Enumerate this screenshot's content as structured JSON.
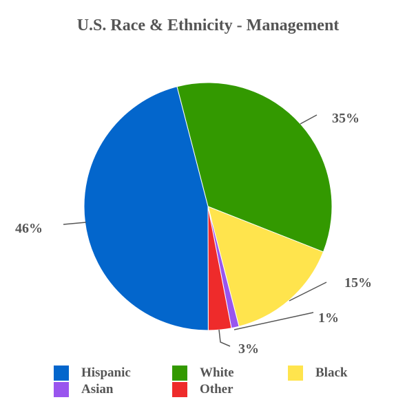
{
  "chart_data": {
    "type": "pie",
    "title": "U.S. Race & Ethnicity - Management",
    "slices": [
      {
        "name": "Hispanic",
        "value": 46,
        "label": "46%",
        "color": "#0366CC"
      },
      {
        "name": "White",
        "value": 35,
        "label": "35%",
        "color": "#339900"
      },
      {
        "name": "Black",
        "value": 15,
        "label": "15%",
        "color": "#FFE44D"
      },
      {
        "name": "Asian",
        "value": 1,
        "label": "1%",
        "color": "#9955EE"
      },
      {
        "name": "Other",
        "value": 3,
        "label": "3%",
        "color": "#EE2B2B"
      }
    ],
    "legend_position": "bottom"
  }
}
